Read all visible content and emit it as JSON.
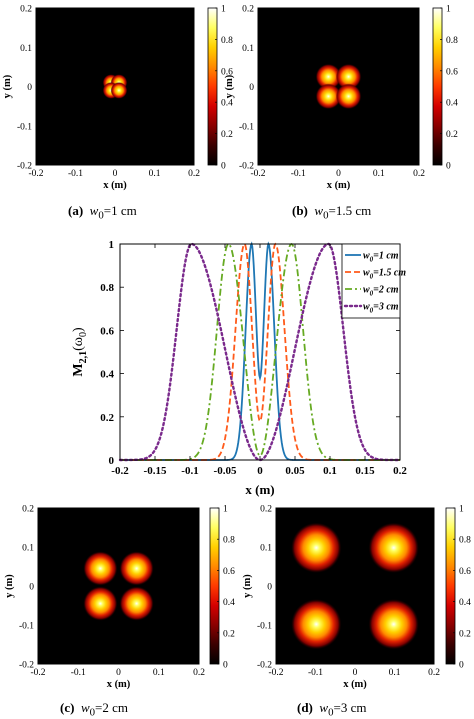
{
  "captions": [
    {
      "tag": "(a)",
      "var": "w",
      "sub": "0",
      "value": "=1 cm"
    },
    {
      "tag": "(b)",
      "var": "w",
      "sub": "0",
      "value": "=1.5 cm"
    },
    {
      "tag": "(c)",
      "var": "w",
      "sub": "0",
      "value": "=2 cm"
    },
    {
      "tag": "(d)",
      "var": "w",
      "sub": "0",
      "value": "=3 cm"
    }
  ],
  "colors": {
    "colormap": [
      "#000000",
      "#3a0000",
      "#8a0000",
      "#d40000",
      "#ff3a00",
      "#ff8a00",
      "#ffd000",
      "#ffff60",
      "#ffffff"
    ],
    "w1": "#1f77b4",
    "w15": "#ff5a1a",
    "w2": "#66aa22",
    "w3": "#7a2a8c"
  },
  "chart_data": [
    {
      "type": "heatmap",
      "id": "a",
      "xlabel": "x (m)",
      "ylabel": "y (m)",
      "xlim": [
        -0.2,
        0.2
      ],
      "ylim": [
        -0.2,
        0.2
      ],
      "xticks": [
        "-0.2",
        "-0.1",
        "0",
        "0.1",
        "0.2"
      ],
      "yticks": [
        "0.2",
        "0.1",
        "0",
        "-0.1",
        "-0.2"
      ],
      "colorbar_ticks": [
        "1",
        "0.8",
        "0.6",
        "0.4",
        "0.2",
        "0"
      ],
      "w0_m": 0.01,
      "spots": [
        [
          -0.01,
          0.01
        ],
        [
          0.01,
          0.01
        ],
        [
          -0.01,
          -0.01
        ],
        [
          0.01,
          -0.01
        ]
      ]
    },
    {
      "type": "heatmap",
      "id": "b",
      "xlabel": "x (m)",
      "ylabel": "y (m)",
      "xlim": [
        -0.2,
        0.2
      ],
      "ylim": [
        -0.2,
        0.2
      ],
      "xticks": [
        "-0.2",
        "-0.1",
        "0",
        "0.1",
        "0.2"
      ],
      "yticks": [
        "0.2",
        "0.1",
        "0",
        "-0.1",
        "-0.2"
      ],
      "colorbar_ticks": [
        "1",
        "0.8",
        "0.6",
        "0.4",
        "0.2",
        "0"
      ],
      "w0_m": 0.015,
      "spots": [
        [
          -0.025,
          0.025
        ],
        [
          0.025,
          0.025
        ],
        [
          -0.025,
          -0.025
        ],
        [
          0.025,
          -0.025
        ]
      ]
    },
    {
      "type": "line",
      "id": "profile",
      "xlabel": "x (m)",
      "ylabel_main": "M",
      "ylabel_sub": "2,1",
      "ylabel_arg": "(ω",
      "ylabel_arg_sub": "0",
      "ylabel_close": ")",
      "xlim": [
        -0.2,
        0.2
      ],
      "ylim": [
        0,
        1
      ],
      "xticks": [
        "-0.2",
        "-0.15",
        "-0.1",
        "-0.05",
        "0",
        "0.05",
        "0.1",
        "0.15",
        "0.2"
      ],
      "yticks": [
        "0",
        "0.2",
        "0.4",
        "0.6",
        "0.8",
        "1"
      ],
      "legend_position": "top-right",
      "series": [
        {
          "name_var": "w",
          "name_sub": "0",
          "name_rest": "=1 cm",
          "peaks": [
            -0.012,
            0.012
          ],
          "sigma": 0.0085,
          "center_min": 0.38,
          "style": "solid",
          "color_key": "w1"
        },
        {
          "name_var": "w",
          "name_sub": "0",
          "name_rest": "=1.5 cm",
          "peaks": [
            -0.022,
            0.022
          ],
          "sigma": 0.013,
          "center_min": 0.18,
          "style": "dashed",
          "color_key": "w15"
        },
        {
          "name_var": "w",
          "name_sub": "0",
          "name_rest": "=2 cm",
          "peaks": [
            -0.045,
            0.045
          ],
          "sigma": 0.0165,
          "center_min": 0.02,
          "style": "dashdot",
          "color_key": "w2"
        },
        {
          "name_var": "w",
          "name_sub": "0",
          "name_rest": "=3 cm",
          "peaks": [
            -0.098,
            0.098
          ],
          "sigma": 0.021,
          "center_min": 0.0,
          "style": "dotted",
          "color_key": "w3"
        }
      ]
    },
    {
      "type": "heatmap",
      "id": "c",
      "xlabel": "x (m)",
      "ylabel": "y (m)",
      "xlim": [
        -0.2,
        0.2
      ],
      "ylim": [
        -0.2,
        0.2
      ],
      "xticks": [
        "-0.2",
        "-0.1",
        "0",
        "0.1",
        "0.2"
      ],
      "yticks": [
        "0.2",
        "0.1",
        "0",
        "-0.1",
        "-0.2"
      ],
      "colorbar_ticks": [
        "1",
        "0.8",
        "0.6",
        "0.4",
        "0.2",
        "0"
      ],
      "w0_m": 0.02,
      "spots": [
        [
          -0.045,
          0.045
        ],
        [
          0.045,
          0.045
        ],
        [
          -0.045,
          -0.045
        ],
        [
          0.045,
          -0.045
        ]
      ]
    },
    {
      "type": "heatmap",
      "id": "d",
      "xlabel": "x (m)",
      "ylabel": "y (m)",
      "xlim": [
        -0.2,
        0.2
      ],
      "ylim": [
        -0.2,
        0.2
      ],
      "xticks": [
        "-0.2",
        "-0.1",
        "0",
        "0.1",
        "0.2"
      ],
      "yticks": [
        "0.2",
        "0.1",
        "0",
        "-0.1",
        "-0.2"
      ],
      "colorbar_ticks": [
        "1",
        "0.8",
        "0.6",
        "0.4",
        "0.2",
        "0"
      ],
      "w0_m": 0.03,
      "spots": [
        [
          -0.098,
          0.098
        ],
        [
          0.098,
          0.098
        ],
        [
          -0.098,
          -0.098
        ],
        [
          0.098,
          -0.098
        ]
      ]
    }
  ]
}
